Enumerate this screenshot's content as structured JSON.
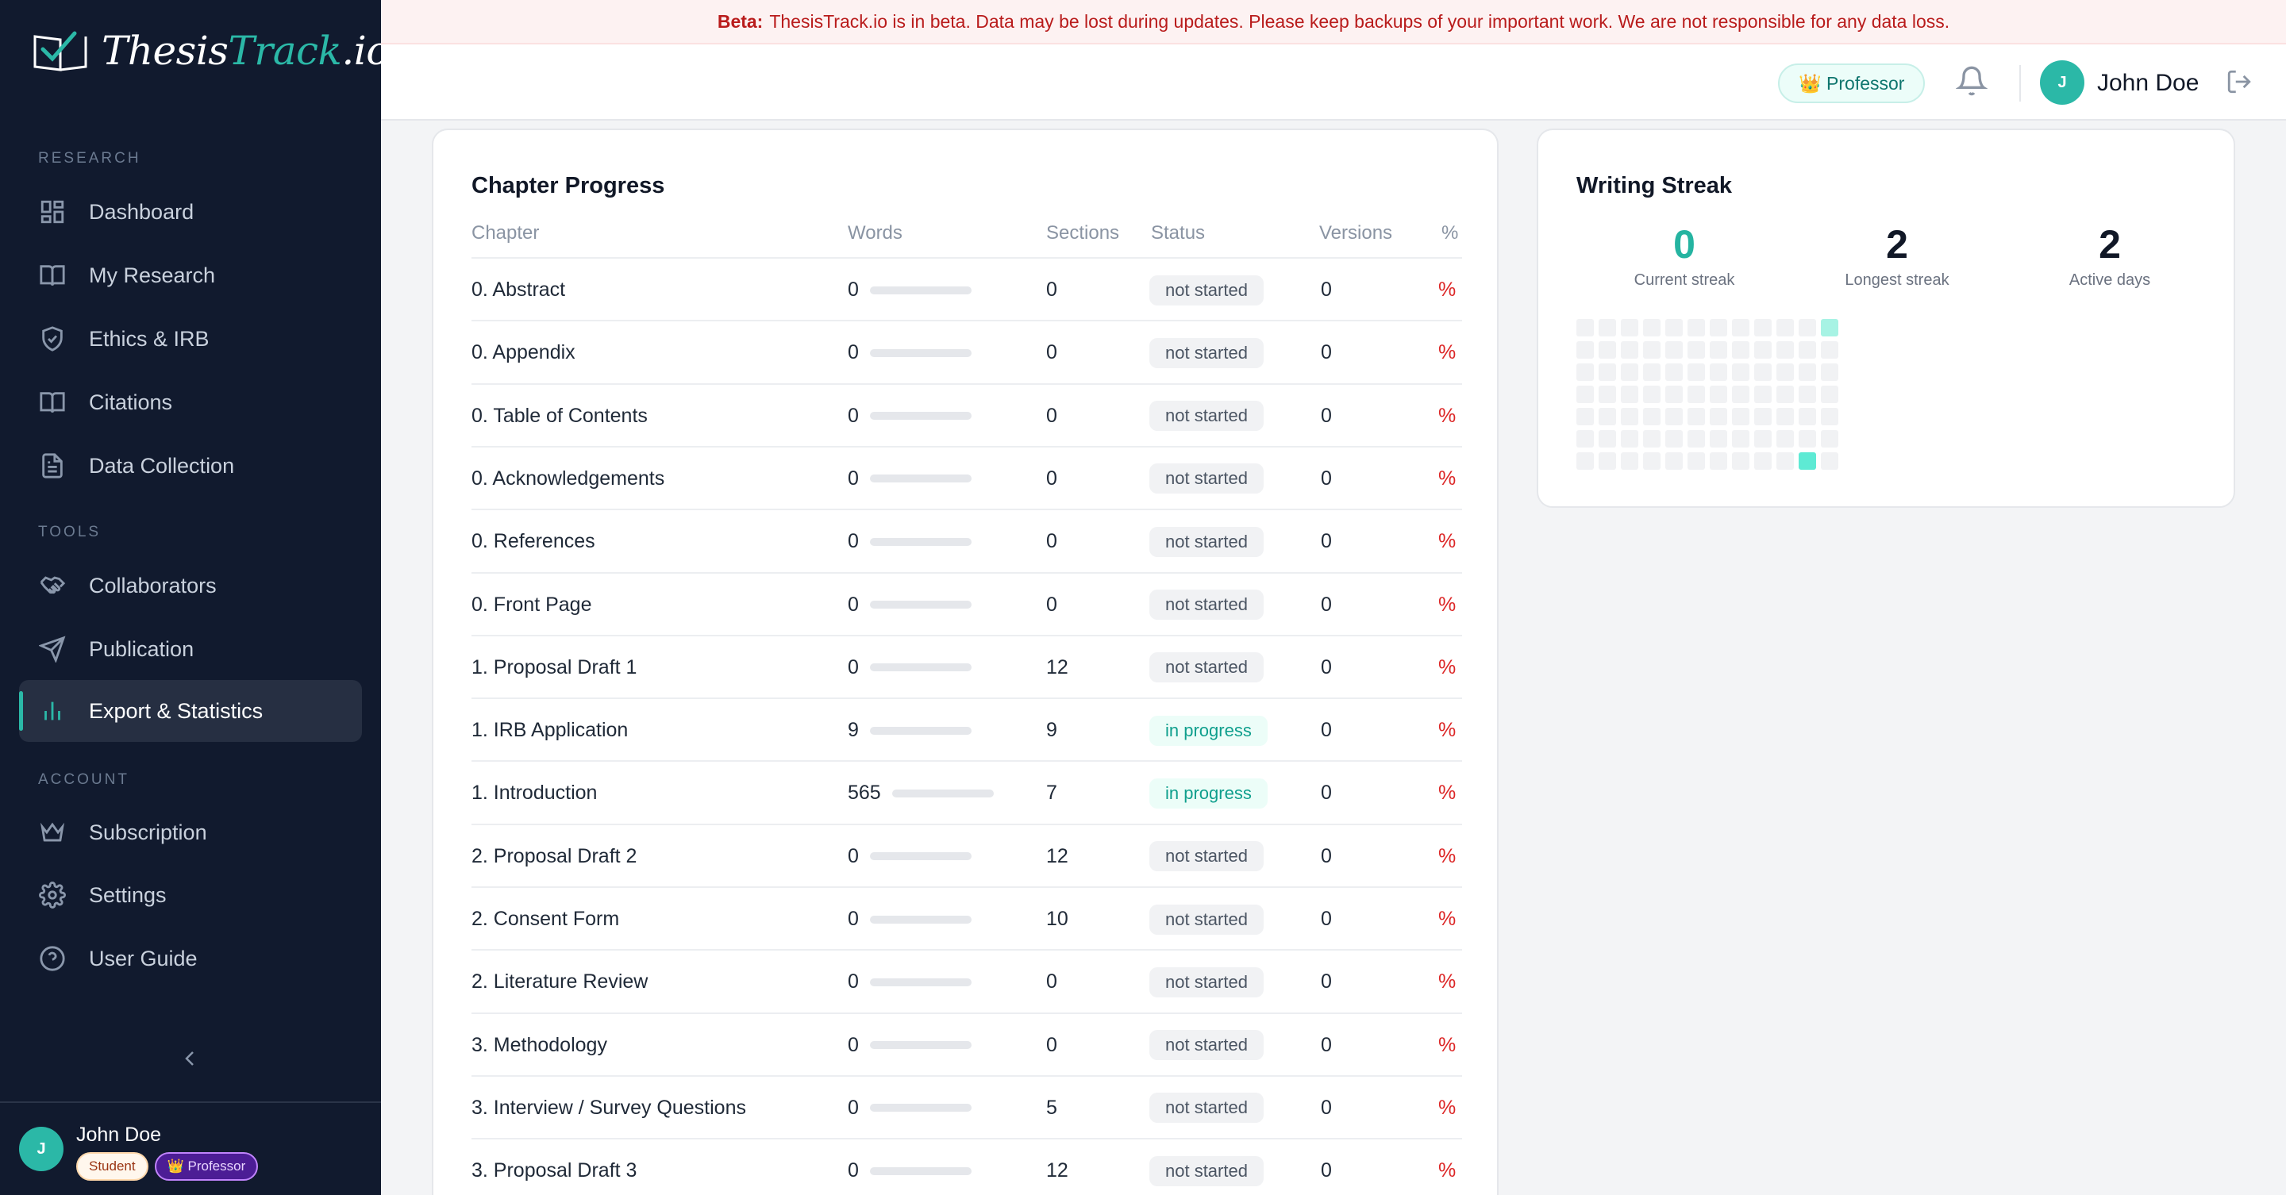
{
  "app": {
    "logo_left": "Thesis",
    "logo_accent": "Track",
    "logo_suffix": ".io"
  },
  "banner": {
    "label": "Beta:",
    "text": "ThesisTrack.io is in beta. Data may be lost during updates. Please keep backups of your important work. We are not responsible for any data loss."
  },
  "sidebar": {
    "sections": {
      "research": "RESEARCH",
      "tools": "TOOLS",
      "account": "ACCOUNT"
    },
    "items": [
      {
        "label": "Dashboard",
        "icon": "grid-icon"
      },
      {
        "label": "My Research",
        "icon": "book-open-icon"
      },
      {
        "label": "Ethics & IRB",
        "icon": "shield-check-icon"
      },
      {
        "label": "Citations",
        "icon": "book-icon"
      },
      {
        "label": "Data Collection",
        "icon": "document-icon"
      },
      {
        "label": "Collaborators",
        "icon": "handshake-icon"
      },
      {
        "label": "Publication",
        "icon": "send-icon"
      },
      {
        "label": "Export & Statistics",
        "icon": "bar-chart-icon",
        "active": true
      },
      {
        "label": "Subscription",
        "icon": "crown-icon"
      },
      {
        "label": "Settings",
        "icon": "gear-icon"
      },
      {
        "label": "User Guide",
        "icon": "help-circle-icon"
      }
    ],
    "user": {
      "initial": "J",
      "name": "John Doe",
      "badge_student": "Student",
      "badge_professor": "👑 Professor"
    }
  },
  "header": {
    "role": "👑 Professor",
    "initial": "J",
    "name": "John Doe"
  },
  "chapters": {
    "title": "Chapter Progress",
    "columns": {
      "chapter": "Chapter",
      "words": "Words",
      "sections": "Sections",
      "status": "Status",
      "versions": "Versions",
      "pct": "%"
    },
    "rows": [
      {
        "name": "0. Abstract",
        "words": "0",
        "sections": "0",
        "status": "not started",
        "versions": "0",
        "pct": "%",
        "fill": 1.0
      },
      {
        "name": "0. Appendix",
        "words": "0",
        "sections": "0",
        "status": "not started",
        "versions": "0",
        "pct": "%",
        "fill": 1.0
      },
      {
        "name": "0. Table of Contents",
        "words": "0",
        "sections": "0",
        "status": "not started",
        "versions": "0",
        "pct": "%",
        "fill": 1.0
      },
      {
        "name": "0. Acknowledgements",
        "words": "0",
        "sections": "0",
        "status": "not started",
        "versions": "0",
        "pct": "%",
        "fill": 1.0
      },
      {
        "name": "0. References",
        "words": "0",
        "sections": "0",
        "status": "not started",
        "versions": "0",
        "pct": "%",
        "fill": 1.0
      },
      {
        "name": "0. Front Page",
        "words": "0",
        "sections": "0",
        "status": "not started",
        "versions": "0",
        "pct": "%",
        "fill": 1.0
      },
      {
        "name": "1. Proposal Draft 1",
        "words": "0",
        "sections": "12",
        "status": "not started",
        "versions": "0",
        "pct": "%",
        "fill": 1.0
      },
      {
        "name": "1. IRB Application",
        "words": "9",
        "sections": "9",
        "status": "in progress",
        "versions": "0",
        "pct": "%",
        "fill": 1.0
      },
      {
        "name": "1. Introduction",
        "words": "565",
        "sections": "7",
        "status": "in progress",
        "versions": "0",
        "pct": "%",
        "fill": 1.0
      },
      {
        "name": "2. Proposal Draft 2",
        "words": "0",
        "sections": "12",
        "status": "not started",
        "versions": "0",
        "pct": "%",
        "fill": 1.0
      },
      {
        "name": "2. Consent Form",
        "words": "0",
        "sections": "10",
        "status": "not started",
        "versions": "0",
        "pct": "%",
        "fill": 1.0
      },
      {
        "name": "2. Literature Review",
        "words": "0",
        "sections": "0",
        "status": "not started",
        "versions": "0",
        "pct": "%",
        "fill": 1.0
      },
      {
        "name": "3. Methodology",
        "words": "0",
        "sections": "0",
        "status": "not started",
        "versions": "0",
        "pct": "%",
        "fill": 1.0
      },
      {
        "name": "3. Interview / Survey Questions",
        "words": "0",
        "sections": "5",
        "status": "not started",
        "versions": "0",
        "pct": "%",
        "fill": 1.0
      },
      {
        "name": "3. Proposal Draft 3",
        "words": "0",
        "sections": "12",
        "status": "not started",
        "versions": "0",
        "pct": "%",
        "fill": 1.0
      }
    ]
  },
  "streak": {
    "title": "Writing Streak",
    "current": "0",
    "current_label": "Current streak",
    "longest": "2",
    "longest_label": "Longest streak",
    "active": "2",
    "active_label": "Active days",
    "heatmap_active": [
      {
        "week": 11,
        "day": 0,
        "level": 1
      },
      {
        "week": 10,
        "day": 6,
        "level": 2
      }
    ]
  }
}
